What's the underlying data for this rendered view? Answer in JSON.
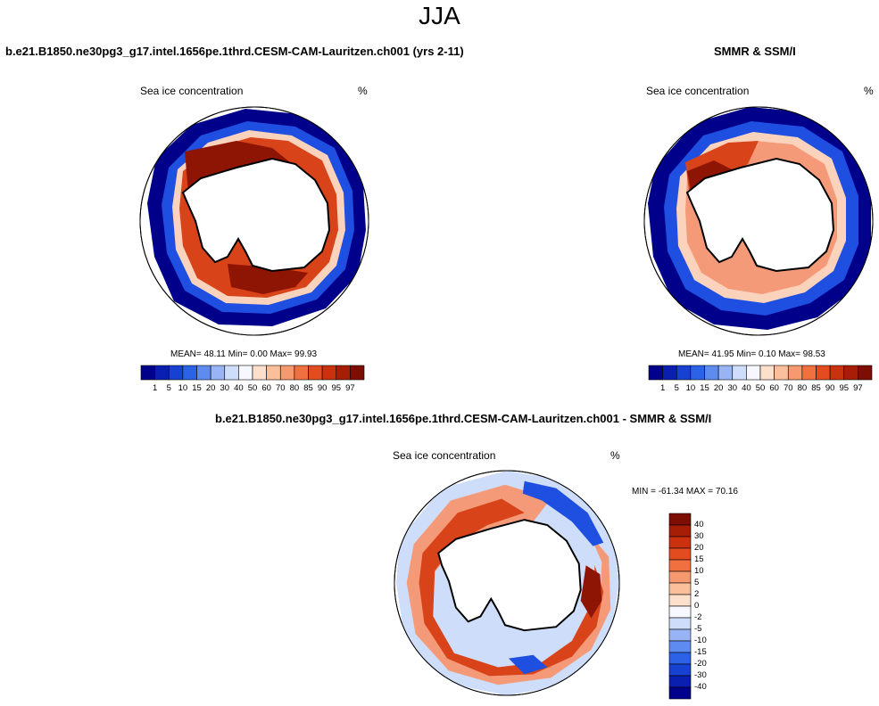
{
  "header": {
    "season": "JJA",
    "model_case": "b.e21.B1850.ne30pg3_g17.intel.1656pe.1thrd.CESM-CAM-Lauritzen.ch001 (yrs 2-11)",
    "obs_case": "SMMR & SSM/I",
    "diff_case": "b.e21.B1850.ne30pg3_g17.intel.1656pe.1thrd.CESM-CAM-Lauritzen.ch001 - SMMR & SSM/I"
  },
  "panels": {
    "model": {
      "variable": "Sea ice concentration",
      "units": "%",
      "stats": "MEAN=  48.11  Min=   0.00  Max=  99.93"
    },
    "obs": {
      "variable": "Sea ice concentration",
      "units": "%",
      "stats": "MEAN=  41.95  Min=   0.10  Max=  98.53"
    },
    "diff": {
      "variable": "Sea ice concentration",
      "units": "%",
      "stats": "MIN = -61.34 MAX =  70.16"
    }
  },
  "colorbars": {
    "concentration": {
      "levels": [
        "1",
        "5",
        "10",
        "15",
        "20",
        "30",
        "40",
        "50",
        "60",
        "70",
        "80",
        "85",
        "90",
        "95",
        "97"
      ],
      "colors": [
        "#00008b",
        "#0a1fb0",
        "#1741d0",
        "#2c63e6",
        "#5e8bef",
        "#98b4f5",
        "#cdddfa",
        "#f7f7ff",
        "#fde0cc",
        "#fbbf9c",
        "#f7996f",
        "#f0703f",
        "#e34c1f",
        "#c9320c",
        "#a51e05",
        "#7c0e03"
      ]
    },
    "difference": {
      "levels": [
        "40",
        "30",
        "20",
        "15",
        "10",
        "5",
        "2",
        "0",
        "-2",
        "-5",
        "-10",
        "-15",
        "-20",
        "-30",
        "-40"
      ],
      "colors": [
        "#7c0e03",
        "#a51e05",
        "#c9320c",
        "#e34c1f",
        "#f0703f",
        "#f7996f",
        "#fbbf9c",
        "#fde0cc",
        "#f7f7ff",
        "#cdddfa",
        "#98b4f5",
        "#5e8bef",
        "#2c63e6",
        "#1741d0",
        "#0a1fb0",
        "#00008b"
      ]
    }
  },
  "map_colors": {
    "ice_high": "#8e1404",
    "ice_mid": "#d8431a",
    "ice_low": "#f59a78",
    "ice_pale": "#fbd3bd",
    "edge_blue": "#1f4fe0",
    "edge_dark": "#00008b",
    "land": "#ffffff"
  }
}
